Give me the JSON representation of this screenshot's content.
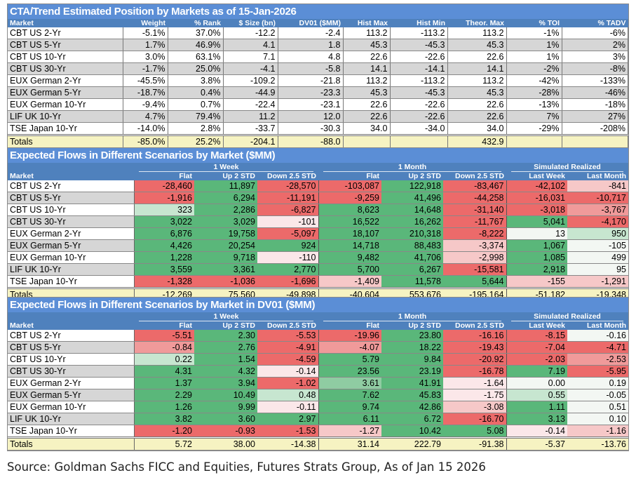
{
  "palette": {
    "r": "#ec6a6a",
    "mr": "#f09a9a",
    "lr": "#f6c8c8",
    "vlr": "#fbe7e9",
    "g": "#5ab77a",
    "mg": "#8fcca2",
    "lg": "#c7e6d0",
    "w": "#f3f7f3"
  },
  "table1": {
    "title": "CTA/Trend Estimated Position by Markets as of 15-Jan-2026",
    "headers": [
      "Market",
      "Weight",
      "% Rank",
      "$ Size (bn)",
      "DV01 ($MM)",
      "Hist Max",
      "Hist Min",
      "Theor. Max",
      "% TOI",
      "% TADV"
    ],
    "rows": [
      [
        "CBT US 2-Yr",
        "-5.1%",
        "37.0%",
        "-12.2",
        "-2.4",
        "113.2",
        "-113.2",
        "113.2",
        "-1%",
        "-6%"
      ],
      [
        "CBT US 5-Yr",
        "1.7%",
        "46.9%",
        "4.1",
        "1.8",
        "45.3",
        "-45.3",
        "45.3",
        "1%",
        "2%"
      ],
      [
        "CBT US 10-Yr",
        "3.0%",
        "63.1%",
        "7.1",
        "4.8",
        "22.6",
        "-22.6",
        "22.6",
        "1%",
        "3%"
      ],
      [
        "CBT US 30-Yr",
        "-1.7%",
        "25.0%",
        "-4.1",
        "-5.8",
        "14.1",
        "-14.1",
        "14.1",
        "-2%",
        "-8%"
      ],
      [
        "EUX German 2-Yr",
        "-45.5%",
        "3.8%",
        "-109.2",
        "-21.8",
        "113.2",
        "-113.2",
        "113.2",
        "-42%",
        "-133%"
      ],
      [
        "EUX German 5-Yr",
        "-18.7%",
        "0.4%",
        "-44.9",
        "-23.3",
        "45.3",
        "-45.3",
        "45.3",
        "-28%",
        "-46%"
      ],
      [
        "EUX German 10-Yr",
        "-9.4%",
        "0.7%",
        "-22.4",
        "-23.1",
        "22.6",
        "-22.6",
        "22.6",
        "-13%",
        "-18%"
      ],
      [
        "LIF UK 10-Yr",
        "4.7%",
        "79.4%",
        "11.2",
        "12.0",
        "22.6",
        "-22.6",
        "22.6",
        "7%",
        "27%"
      ],
      [
        "TSE Japan 10-Yr",
        "-14.0%",
        "2.8%",
        "-33.7",
        "-30.3",
        "34.0",
        "-34.0",
        "34.0",
        "-29%",
        "-208%"
      ]
    ],
    "totals": [
      "Totals",
      "-85.0%",
      "25.2%",
      "-204.1",
      "-88.0",
      "",
      "",
      "432.9",
      "",
      ""
    ]
  },
  "table2": {
    "title": "Expected Flows in Different Scenarios by Market ($MM)",
    "groups": [
      "1 Week",
      "1 Month",
      "Simulated Realized"
    ],
    "headers": [
      "Market",
      "Flat",
      "Up 2 STD",
      "Down 2.5 STD",
      "Flat",
      "Up 2 STD",
      "Down 2.5 STD",
      "Last Week",
      "Last Month"
    ],
    "rows": [
      [
        "CBT US 2-Yr",
        "-28,460",
        "11,897",
        "-28,570",
        "-103,087",
        "122,918",
        "-83,467",
        "-42,102",
        "-841"
      ],
      [
        "CBT US 5-Yr",
        "-1,916",
        "6,294",
        "-11,191",
        "-9,259",
        "41,496",
        "-44,258",
        "-16,031",
        "-10,717"
      ],
      [
        "CBT US 10-Yr",
        "323",
        "2,286",
        "-6,827",
        "8,623",
        "14,648",
        "-31,140",
        "-3,018",
        "-3,767"
      ],
      [
        "CBT US 30-Yr",
        "3,022",
        "3,029",
        "-101",
        "16,522",
        "16,262",
        "-11,767",
        "5,041",
        "-4,170"
      ],
      [
        "EUX German 2-Yr",
        "6,876",
        "19,758",
        "-5,097",
        "18,107",
        "210,318",
        "-8,222",
        "13",
        "950"
      ],
      [
        "EUX German 5-Yr",
        "4,426",
        "20,254",
        "924",
        "14,718",
        "88,483",
        "-3,374",
        "1,067",
        "-105"
      ],
      [
        "EUX German 10-Yr",
        "1,228",
        "9,718",
        "-110",
        "9,482",
        "41,706",
        "-2,998",
        "1,085",
        "499"
      ],
      [
        "LIF UK 10-Yr",
        "3,559",
        "3,361",
        "2,770",
        "5,700",
        "6,267",
        "-15,581",
        "2,918",
        "95"
      ],
      [
        "TSE Japan 10-Yr",
        "-1,328",
        "-1,036",
        "-1,696",
        "-1,409",
        "11,578",
        "5,644",
        "-155",
        "-1,291"
      ]
    ],
    "colors": [
      [
        "r",
        "g",
        "r",
        "r",
        "g",
        "r",
        "r",
        "lr"
      ],
      [
        "r",
        "g",
        "r",
        "r",
        "g",
        "r",
        "r",
        "r"
      ],
      [
        "lg",
        "g",
        "r",
        "g",
        "g",
        "r",
        "r",
        "mr"
      ],
      [
        "g",
        "g",
        "vlr",
        "g",
        "g",
        "r",
        "g",
        "r"
      ],
      [
        "g",
        "g",
        "r",
        "g",
        "g",
        "r",
        "w",
        "lg"
      ],
      [
        "g",
        "g",
        "g",
        "g",
        "g",
        "lr",
        "g",
        "w"
      ],
      [
        "g",
        "g",
        "vlr",
        "g",
        "g",
        "lr",
        "g",
        "w"
      ],
      [
        "g",
        "g",
        "g",
        "g",
        "g",
        "r",
        "g",
        "w"
      ],
      [
        "r",
        "r",
        "r",
        "lr",
        "g",
        "g",
        "lr",
        "lr"
      ]
    ],
    "totals": [
      "Totals",
      "-12,269",
      "75,560",
      "-49,898",
      "-40,604",
      "553,676",
      "-195,164",
      "-51,182",
      "-19,348"
    ]
  },
  "table3": {
    "title": "Expected Flows in Different Scenarios by Market in DV01 ($MM)",
    "groups": [
      "1 Week",
      "1 Month",
      "Simulated Realized"
    ],
    "headers": [
      "Market",
      "Flat",
      "Up 2 STD",
      "Down 2.5 STD",
      "Flat",
      "Up 2 STD",
      "Down 2.5 STD",
      "Last Week",
      "Last Month"
    ],
    "rows": [
      [
        "CBT US 2-Yr",
        "-5.51",
        "2.30",
        "-5.53",
        "-19.96",
        "23.80",
        "-16.16",
        "-8.15",
        "-0.16"
      ],
      [
        "CBT US 5-Yr",
        "-0.84",
        "2.76",
        "-4.91",
        "-4.07",
        "18.22",
        "-19.43",
        "-7.04",
        "-4.71"
      ],
      [
        "CBT US 10-Yr",
        "0.22",
        "1.54",
        "-4.59",
        "5.79",
        "9.84",
        "-20.92",
        "-2.03",
        "-2.53"
      ],
      [
        "CBT US 30-Yr",
        "4.31",
        "4.32",
        "-0.14",
        "23.56",
        "23.19",
        "-16.78",
        "7.19",
        "-5.95"
      ],
      [
        "EUX German 2-Yr",
        "1.37",
        "3.94",
        "-1.02",
        "3.61",
        "41.91",
        "-1.64",
        "0.00",
        "0.19"
      ],
      [
        "EUX German 5-Yr",
        "2.29",
        "10.49",
        "0.48",
        "7.62",
        "45.83",
        "-1.75",
        "0.55",
        "-0.05"
      ],
      [
        "EUX German 10-Yr",
        "1.26",
        "9.99",
        "-0.11",
        "9.74",
        "42.86",
        "-3.08",
        "1.11",
        "0.51"
      ],
      [
        "LIF UK 10-Yr",
        "3.82",
        "3.60",
        "2.97",
        "6.11",
        "6.72",
        "-16.70",
        "3.13",
        "0.10"
      ],
      [
        "TSE Japan 10-Yr",
        "-1.20",
        "-0.93",
        "-1.53",
        "-1.27",
        "10.42",
        "5.08",
        "-0.14",
        "-1.16"
      ]
    ],
    "colors": [
      [
        "r",
        "g",
        "r",
        "r",
        "g",
        "r",
        "r",
        "w"
      ],
      [
        "mr",
        "g",
        "r",
        "mr",
        "g",
        "r",
        "r",
        "r"
      ],
      [
        "lg",
        "g",
        "r",
        "g",
        "g",
        "r",
        "r",
        "mr"
      ],
      [
        "g",
        "g",
        "vlr",
        "g",
        "g",
        "r",
        "g",
        "r"
      ],
      [
        "g",
        "g",
        "r",
        "mg",
        "g",
        "vlr",
        "w",
        "w"
      ],
      [
        "g",
        "g",
        "lg",
        "g",
        "g",
        "vlr",
        "lg",
        "w"
      ],
      [
        "g",
        "g",
        "vlr",
        "g",
        "g",
        "lr",
        "g",
        "w"
      ],
      [
        "g",
        "g",
        "g",
        "g",
        "g",
        "r",
        "g",
        "w"
      ],
      [
        "r",
        "r",
        "r",
        "lr",
        "g",
        "g",
        "vlr",
        "lr"
      ]
    ],
    "totals": [
      "Totals",
      "5.72",
      "38.00",
      "-14.38",
      "31.14",
      "222.79",
      "-91.38",
      "-5.37",
      "-13.76"
    ]
  },
  "source": "Source: Goldman Sachs FICC and Equities, Futures Strats Group, As of Jan 15 2026"
}
